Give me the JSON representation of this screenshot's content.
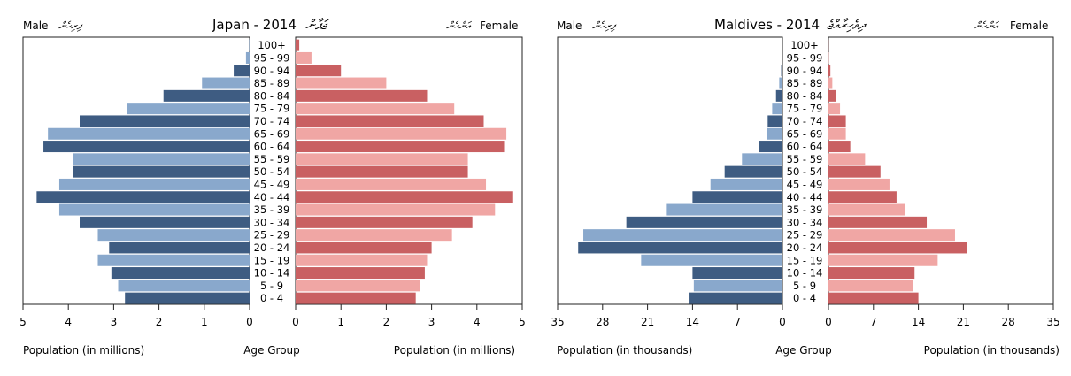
{
  "chart_data": [
    {
      "type": "bar",
      "orientation": "horizontal-population-pyramid",
      "title": "Japan - 2014",
      "title_script": "ޖަޕާން",
      "left_label": "Male",
      "left_label_script": "ފިރިހެން",
      "right_label": "Female",
      "right_label_script": "އަންހެން",
      "center_label": "Age Group",
      "xlabel_left": "Population (in millions)",
      "xlabel_right": "Population (in millions)",
      "xlim": [
        0,
        5
      ],
      "ticks_left": [
        "5",
        "4",
        "3",
        "2",
        "1",
        "0"
      ],
      "ticks_right": [
        "0",
        "1",
        "2",
        "3",
        "4",
        "5"
      ],
      "tick_values": [
        5,
        4,
        3,
        2,
        1,
        0
      ],
      "categories": [
        "0 - 4",
        "5 - 9",
        "10 - 14",
        "15 - 19",
        "20 - 24",
        "25 - 29",
        "30 - 34",
        "35 - 39",
        "40 - 44",
        "45 - 49",
        "50 - 54",
        "55 - 59",
        "60 - 64",
        "65 - 69",
        "70 - 74",
        "75 - 79",
        "80 - 84",
        "85 - 89",
        "90 - 94",
        "95 - 99",
        "100+"
      ],
      "series": [
        {
          "name": "Male",
          "values": [
            2.75,
            2.9,
            3.05,
            3.35,
            3.1,
            3.35,
            3.75,
            4.2,
            4.7,
            4.2,
            3.9,
            3.9,
            4.55,
            4.45,
            3.75,
            2.7,
            1.9,
            1.05,
            0.35,
            0.08,
            0.01
          ]
        },
        {
          "name": "Female",
          "values": [
            2.65,
            2.75,
            2.85,
            2.9,
            3.0,
            3.45,
            3.9,
            4.4,
            4.8,
            4.2,
            3.8,
            3.8,
            4.6,
            4.65,
            4.15,
            3.5,
            2.9,
            2.0,
            1.0,
            0.35,
            0.08
          ]
        }
      ],
      "colors": {
        "male_dark": "#3e5c82",
        "male_light": "#89a8cc",
        "female_dark": "#c96062",
        "female_light": "#f0a6a4"
      },
      "grid": false
    },
    {
      "type": "bar",
      "orientation": "horizontal-population-pyramid",
      "title": "Maldives - 2014",
      "title_script": "ދިވެހިރާއްޖެ",
      "left_label": "Male",
      "left_label_script": "ފިރިހެން",
      "right_label": "Female",
      "right_label_script": "އަންހެން",
      "center_label": "Age Group",
      "xlabel_left": "Population (in thousands)",
      "xlabel_right": "Population (in thousands)",
      "xlim": [
        0,
        35
      ],
      "ticks_left": [
        "35",
        "28",
        "21",
        "14",
        "7",
        "0"
      ],
      "ticks_right": [
        "0",
        "7",
        "14",
        "21",
        "28",
        "35"
      ],
      "tick_values": [
        35,
        28,
        21,
        14,
        7,
        0
      ],
      "categories": [
        "0 - 4",
        "5 - 9",
        "10 - 14",
        "15 - 19",
        "20 - 24",
        "25 - 29",
        "30 - 34",
        "35 - 39",
        "40 - 44",
        "45 - 49",
        "50 - 54",
        "55 - 59",
        "60 - 64",
        "65 - 69",
        "70 - 74",
        "75 - 79",
        "80 - 84",
        "85 - 89",
        "90 - 94",
        "95 - 99",
        "100+"
      ],
      "series": [
        {
          "name": "Male",
          "values": [
            14.6,
            13.8,
            14.0,
            22.0,
            31.8,
            31.0,
            24.3,
            18.0,
            14.0,
            11.2,
            9.0,
            6.3,
            3.6,
            2.4,
            2.3,
            1.6,
            1.0,
            0.5,
            0.2,
            0.05,
            0.02
          ]
        },
        {
          "name": "Female",
          "values": [
            14.0,
            13.2,
            13.4,
            17.0,
            21.5,
            19.7,
            15.3,
            11.9,
            10.6,
            9.5,
            8.1,
            5.7,
            3.4,
            2.7,
            2.7,
            1.8,
            1.2,
            0.6,
            0.3,
            0.05,
            0.02
          ]
        }
      ],
      "colors": {
        "male_dark": "#3e5c82",
        "male_light": "#89a8cc",
        "female_dark": "#c96062",
        "female_light": "#f0a6a4"
      },
      "grid": false
    }
  ]
}
